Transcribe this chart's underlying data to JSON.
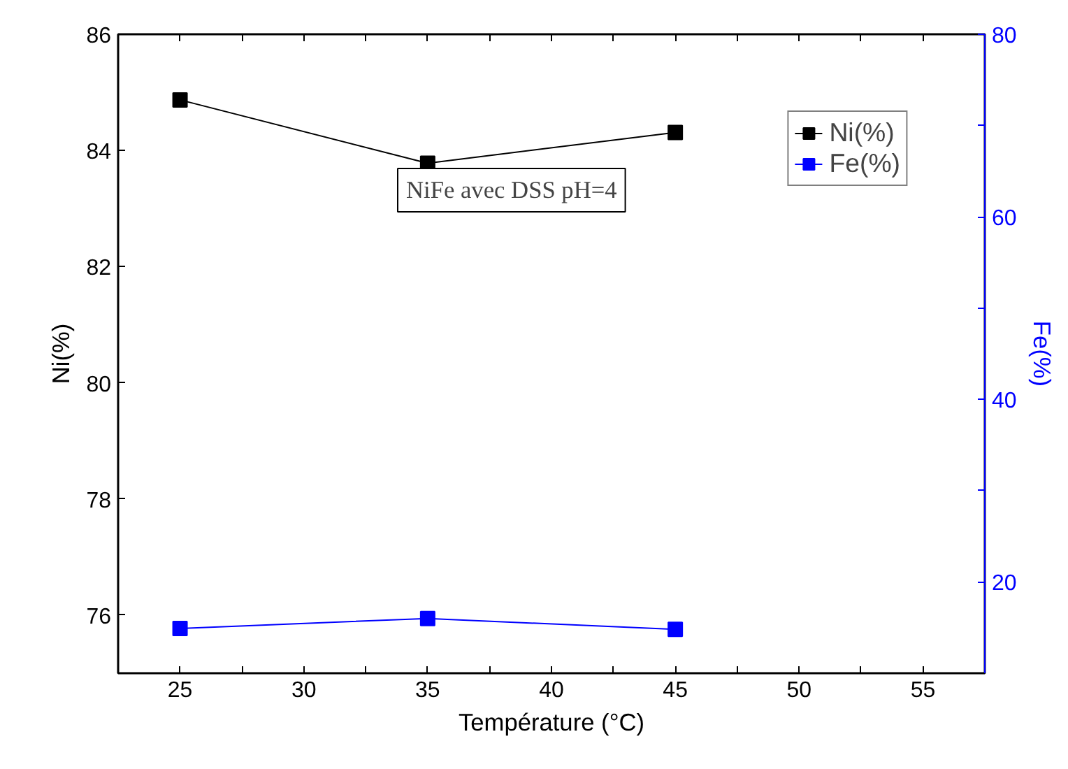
{
  "chart_data": {
    "type": "line",
    "xlabel": "Température (°C)",
    "ylabel": "Ni(%)",
    "y2label": "Fe(%)",
    "x": [
      25,
      35,
      45
    ],
    "series": [
      {
        "name": "Ni(%)",
        "color": "#000000",
        "values": [
          84.87,
          83.78,
          84.31
        ]
      },
      {
        "name": "Fe(%)",
        "color": "#0000ff",
        "values": [
          14.9,
          16.0,
          14.8
        ],
        "axis": "y2"
      }
    ],
    "xlim": [
      22.5,
      57.5
    ],
    "xticks": [
      {
        "value": 22.5,
        "label": null
      },
      25,
      {
        "value": 27.5,
        "label": null
      },
      30,
      {
        "value": 32.5,
        "label": null
      },
      35,
      {
        "value": 37.5,
        "label": null
      },
      40,
      {
        "value": 42.5,
        "label": null
      },
      45,
      {
        "value": 47.5,
        "label": null
      },
      50,
      {
        "value": 52.5,
        "label": null
      },
      55,
      {
        "value": 57.5,
        "label": null
      }
    ],
    "ylim": [
      75,
      86
    ],
    "yticks": [
      76,
      78,
      80,
      82,
      84,
      86
    ],
    "y2lim": [
      10,
      80
    ],
    "y2ticks": [
      20,
      {
        "value": 30,
        "label": null
      },
      40,
      {
        "value": 50,
        "label": null
      },
      60,
      {
        "value": 70,
        "label": null
      },
      80
    ],
    "annotations": [
      "NiFe avec DSS pH=4"
    ],
    "legend": "top right",
    "marker": "square",
    "line_style": "solid",
    "grid": false
  }
}
